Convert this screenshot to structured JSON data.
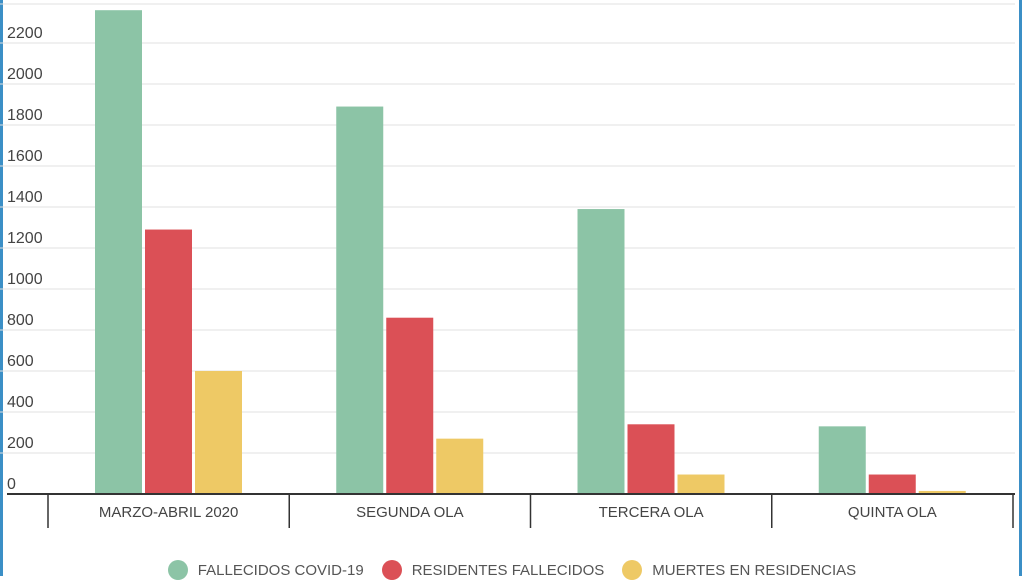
{
  "chart_data": {
    "type": "bar",
    "categories": [
      "MARZO-ABRIL 2020",
      "SEGUNDA OLA",
      "TERCERA OLA",
      "QUINTA OLA"
    ],
    "series": [
      {
        "name": "FALLECIDOS COVID-19",
        "color": "#8cc4a6",
        "values": [
          2360,
          1890,
          1390,
          330
        ]
      },
      {
        "name": "RESIDENTES FALLECIDOS",
        "color": "#db5056",
        "values": [
          1290,
          860,
          340,
          95
        ]
      },
      {
        "name": "MUERTES EN RESIDENCIAS",
        "color": "#eec965",
        "values": [
          600,
          270,
          95,
          15
        ]
      }
    ],
    "yticks": [
      "0",
      "200",
      "400",
      "600",
      "800",
      "1000",
      "1200",
      "1400",
      "1600",
      "1800",
      "2000",
      "2200"
    ],
    "ylim": [
      0,
      2390
    ],
    "grid": true,
    "legend": "bottom"
  }
}
